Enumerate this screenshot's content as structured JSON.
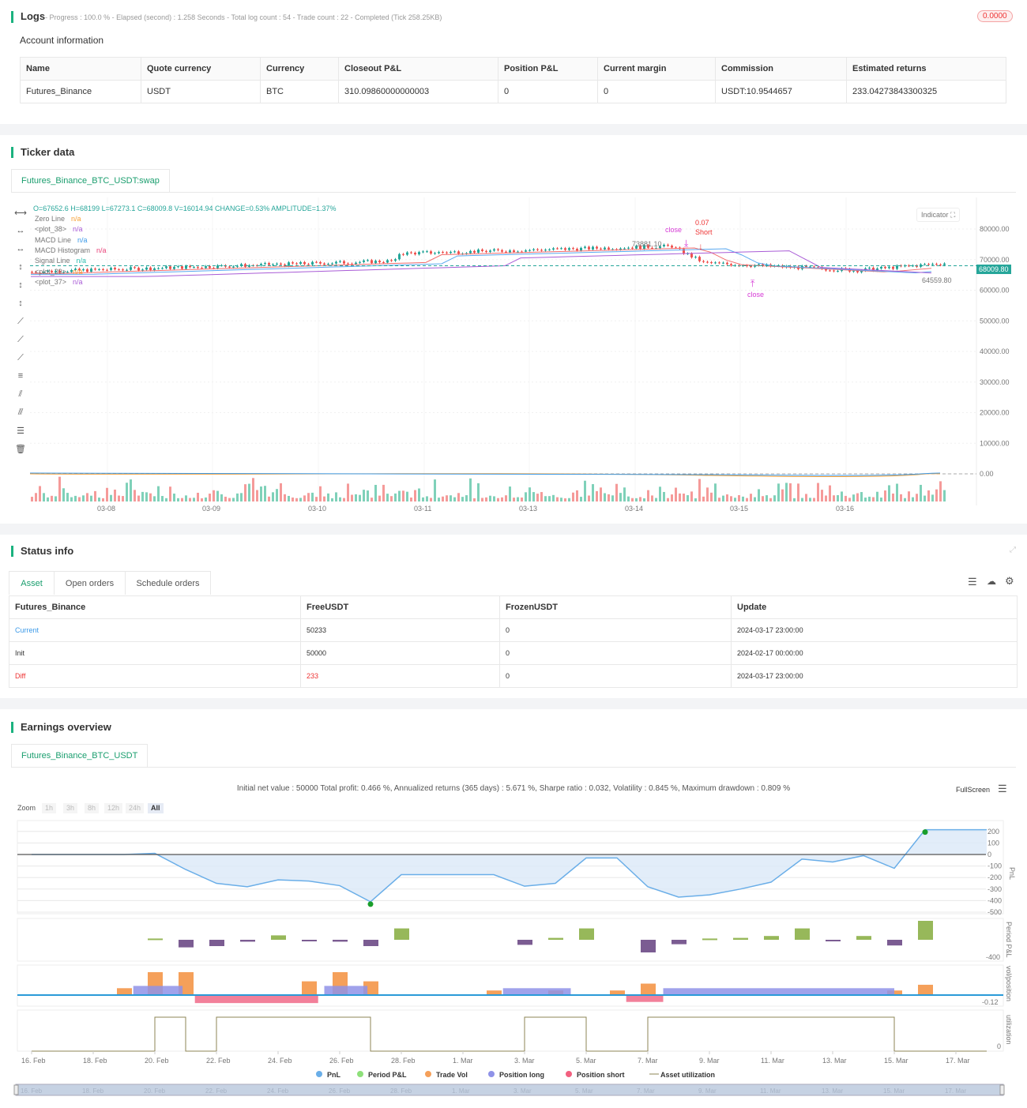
{
  "logs": {
    "title": "Logs",
    "summary": "- Progress : 100.0 % - Elapsed (second) : 1.258  Seconds - Total log count : 54 - Trade count : 22 - Completed (Tick 258.25KB)",
    "badge": "0.0000"
  },
  "account": {
    "title": "Account information",
    "headers": [
      "Name",
      "Quote currency",
      "Currency",
      "Closeout P&L",
      "Position P&L",
      "Current margin",
      "Commission",
      "Estimated returns"
    ],
    "row": [
      "Futures_Binance",
      "USDT",
      "BTC",
      "310.09860000000003",
      "0",
      "0",
      "USDT:10.9544657",
      "233.04273843300325"
    ]
  },
  "ticker": {
    "title": "Ticker data",
    "tab": "Futures_Binance_BTC_USDT:swap",
    "ohlc": "O=67652.6 H=68199 L=67273.1 C=68009.8 V=16014.94 CHANGE=0.53% AMPLITUDE=1.37%",
    "legend": [
      {
        "name": "Zero Line",
        "value": "n/a",
        "color": "#f7a035"
      },
      {
        "name": "<plot_38>",
        "value": "n/a",
        "color": "#a95cd6"
      },
      {
        "name": "MACD Line",
        "value": "n/a",
        "color": "#3c9ae8"
      },
      {
        "name": "MACD Histogram",
        "value": "n/a",
        "color": "#e8437a"
      },
      {
        "name": "Signal Line",
        "value": "n/a",
        "color": "#2bbfb0"
      },
      {
        "name": "<plot_39>",
        "value": "n/a",
        "color": "#f7a035"
      },
      {
        "name": "<plot_37>",
        "value": "n/a",
        "color": "#a95cd6"
      }
    ],
    "indicator_label": "Indicator",
    "price_ticks": [
      "80000.00",
      "70000.00",
      "60000.00",
      "50000.00",
      "40000.00",
      "30000.00",
      "20000.00",
      "10000.00",
      "0.00"
    ],
    "current_price": "68009.80",
    "date_ticks": [
      "03-08",
      "03-09",
      "03-10",
      "03-11",
      "03-13",
      "03-14",
      "03-15",
      "03-16"
    ],
    "annotations": {
      "high": "73881.10",
      "low": "64559.80",
      "close1": "close",
      "close2": "close",
      "short": "Short",
      "qty": "0.07"
    }
  },
  "status": {
    "title": "Status info",
    "tabs": [
      "Asset",
      "Open orders",
      "Schedule orders"
    ],
    "headers": [
      "Futures_Binance",
      "FreeUSDT",
      "FrozenUSDT",
      "Update"
    ],
    "rows": [
      [
        "Current",
        "50233",
        "0",
        "2024-03-17 23:00:00"
      ],
      [
        "Init",
        "50000",
        "0",
        "2024-02-17 00:00:00"
      ],
      [
        "Diff",
        "233",
        "0",
        "2024-03-17 23:00:00"
      ]
    ]
  },
  "earnings": {
    "title": "Earnings overview",
    "tab": "Futures_Binance_BTC_USDT",
    "stats": "Initial net value : 50000 Total profit: 0.466 %, Annualized returns (365 days) : 5.671 %, Sharpe ratio : 0.032, Volatility : 0.845 %, Maximum drawdown : 0.809 %",
    "fullscreen": "FullScreen",
    "zoom_label": "Zoom",
    "zoom_buttons": [
      "1h",
      "3h",
      "8h",
      "12h",
      "24h",
      "All"
    ],
    "legend": [
      "PnL",
      "Period P&L",
      "Trade Vol",
      "Position long",
      "Position short",
      "Asset utilization"
    ],
    "axis_titles": [
      "PnL",
      "Period P&L",
      "vol/position",
      "utilization"
    ]
  },
  "chart_data": {
    "type": "line",
    "x_ticks": [
      "16. Feb",
      "18. Feb",
      "20. Feb",
      "22. Feb",
      "24. Feb",
      "26. Feb",
      "28. Feb",
      "1. Mar",
      "3. Mar",
      "5. Mar",
      "7. Mar",
      "9. Mar",
      "11. Mar",
      "13. Mar",
      "15. Mar",
      "17. Mar"
    ],
    "pnl_ticks": [
      "200",
      "100",
      "0",
      "-100",
      "-200",
      "-300",
      "-400",
      "-500"
    ],
    "period_tick": "-400",
    "vol_tick": "-0.12",
    "util_tick": "0",
    "pnl": [
      [
        0,
        0
      ],
      [
        3,
        0
      ],
      [
        4,
        10
      ],
      [
        5,
        -130
      ],
      [
        6,
        -250
      ],
      [
        7,
        -280
      ],
      [
        8,
        -220
      ],
      [
        9,
        -230
      ],
      [
        10,
        -270
      ],
      [
        11,
        -410
      ],
      [
        12,
        -175
      ],
      [
        13,
        -175
      ],
      [
        14,
        -175
      ],
      [
        15,
        -175
      ],
      [
        16,
        -275
      ],
      [
        17,
        -250
      ],
      [
        18,
        -30
      ],
      [
        19,
        -30
      ],
      [
        20,
        -280
      ],
      [
        21,
        -370
      ],
      [
        22,
        -350
      ],
      [
        23,
        -300
      ],
      [
        24,
        -240
      ],
      [
        25,
        -40
      ],
      [
        26,
        -65
      ],
      [
        27,
        -10
      ],
      [
        28,
        -120
      ],
      [
        29,
        215
      ],
      [
        31,
        215
      ]
    ],
    "period_pnl": [
      [
        4,
        10
      ],
      [
        5,
        -60
      ],
      [
        6,
        -50
      ],
      [
        7,
        -15
      ],
      [
        8,
        35
      ],
      [
        9,
        -5
      ],
      [
        10,
        -15
      ],
      [
        11,
        -50
      ],
      [
        12,
        90
      ],
      [
        16,
        -40
      ],
      [
        17,
        15
      ],
      [
        18,
        90
      ],
      [
        20,
        -100
      ],
      [
        21,
        -35
      ],
      [
        22,
        10
      ],
      [
        23,
        15
      ],
      [
        24,
        30
      ],
      [
        25,
        90
      ],
      [
        26,
        -10
      ],
      [
        27,
        30
      ],
      [
        28,
        -45
      ],
      [
        29,
        150
      ]
    ],
    "trade_vol": [
      [
        3,
        0.06
      ],
      [
        4,
        0.2
      ],
      [
        5,
        0.2
      ],
      [
        9,
        0.12
      ],
      [
        10,
        0.2
      ],
      [
        11,
        0.12
      ],
      [
        15,
        0.04
      ],
      [
        17,
        0.04
      ],
      [
        19,
        0.04
      ],
      [
        20,
        0.1
      ],
      [
        28,
        0.04
      ],
      [
        29,
        0.09
      ]
    ],
    "position_long": [
      [
        3.3,
        4.9,
        0.08
      ],
      [
        9.5,
        10.9,
        0.08
      ],
      [
        15.3,
        17.5,
        0.06
      ],
      [
        20.5,
        28,
        0.06
      ]
    ],
    "position_short": [
      [
        5.3,
        9.3,
        -0.07
      ],
      [
        19.3,
        20.5,
        -0.06
      ]
    ],
    "utilization": [
      [
        0,
        0
      ],
      [
        4,
        1
      ],
      [
        5,
        0
      ],
      [
        6,
        1
      ],
      [
        11,
        0
      ],
      [
        16,
        1
      ],
      [
        18,
        0
      ],
      [
        20,
        1
      ],
      [
        28,
        0
      ],
      [
        31,
        0
      ]
    ]
  }
}
